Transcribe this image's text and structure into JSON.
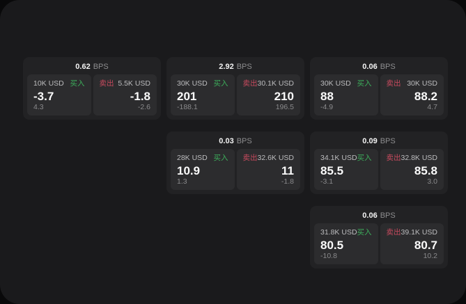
{
  "colors": {
    "buy_green": "#3dae5b",
    "sell_red": "#c74a5e",
    "panel_background": "#1a1a1c",
    "card_background": "#222224",
    "tile_background": "#2c2c2e"
  },
  "cards": [
    {
      "bps_value": "0.62",
      "bps_unit": "BPS",
      "buy": {
        "amount": "10K USD",
        "label": "买入",
        "price": "-3.7",
        "delta": "4.3"
      },
      "sell": {
        "label": "卖出",
        "amount": "5.5K USD",
        "price": "-1.8",
        "delta": "-2.6"
      }
    },
    {
      "bps_value": "2.92",
      "bps_unit": "BPS",
      "buy": {
        "amount": "30K USD",
        "label": "买入",
        "price": "201",
        "delta": "-188.1"
      },
      "sell": {
        "label": "卖出",
        "amount": "30.1K USD",
        "price": "210",
        "delta": "196.5"
      }
    },
    {
      "bps_value": "0.06",
      "bps_unit": "BPS",
      "buy": {
        "amount": "30K USD",
        "label": "买入",
        "price": "88",
        "delta": "-4.9"
      },
      "sell": {
        "label": "卖出",
        "amount": "30K USD",
        "price": "88.2",
        "delta": "4.7"
      }
    },
    {
      "bps_value": "0.03",
      "bps_unit": "BPS",
      "buy": {
        "amount": "28K USD",
        "label": "买入",
        "price": "10.9",
        "delta": "1.3"
      },
      "sell": {
        "label": "卖出",
        "amount": "32.6K USD",
        "price": "11",
        "delta": "-1.8"
      }
    },
    {
      "bps_value": "0.09",
      "bps_unit": "BPS",
      "buy": {
        "amount": "34.1K USD",
        "label": "买入",
        "price": "85.5",
        "delta": "-3.1"
      },
      "sell": {
        "label": "卖出",
        "amount": "32.8K USD",
        "price": "85.8",
        "delta": "3.0"
      }
    },
    {
      "bps_value": "0.06",
      "bps_unit": "BPS",
      "buy": {
        "amount": "31.8K USD",
        "label": "买入",
        "price": "80.5",
        "delta": "-10.8"
      },
      "sell": {
        "label": "卖出",
        "amount": "39.1K USD",
        "price": "80.7",
        "delta": "10.2"
      }
    }
  ]
}
